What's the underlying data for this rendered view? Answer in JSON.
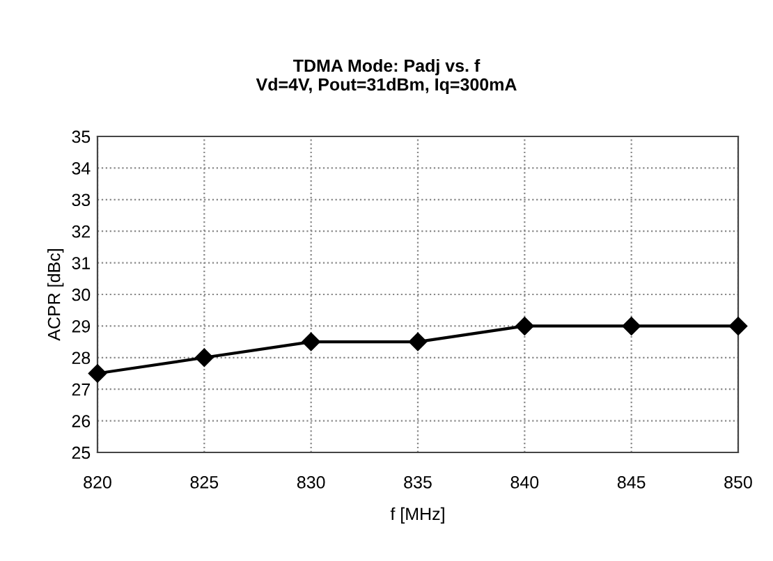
{
  "chart_data": {
    "type": "line",
    "title": "TDMA Mode: Padj vs. f\nVd=4V, Pout=31dBm, Iq=300mA",
    "xlabel": "f [MHz]",
    "ylabel": "ACPR [dBc]",
    "x": [
      820,
      825,
      830,
      835,
      840,
      845,
      850
    ],
    "series": [
      {
        "color": "#000000",
        "values": [
          27.5,
          28,
          28.5,
          28.5,
          29,
          29,
          29
        ]
      }
    ],
    "xlim": [
      820,
      850
    ],
    "xticks": [
      820,
      825,
      830,
      835,
      840,
      845,
      850
    ],
    "ylim": [
      25,
      35
    ],
    "yticks": [
      25,
      26,
      27,
      28,
      29,
      30,
      31,
      32,
      33,
      34,
      35
    ],
    "grid": true,
    "marker": "diamond",
    "line_style": "solid",
    "legend": false
  }
}
